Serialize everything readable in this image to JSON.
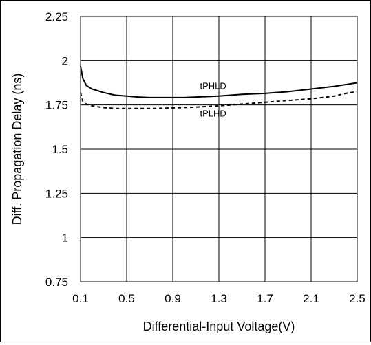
{
  "chart_data": {
    "type": "line",
    "title": "",
    "xlabel": "Differential-Input Voltage(V)",
    "ylabel": "Diff. Propagation Delay (ns)",
    "xlim": [
      0.1,
      2.5
    ],
    "ylim": [
      0.75,
      2.25
    ],
    "xticks": [
      "0.1",
      "0.5",
      "0.9",
      "1.3",
      "1.7",
      "2.1",
      "2.5"
    ],
    "yticks": [
      "0.75",
      "1",
      "1.25",
      "1.5",
      "1.75",
      "2",
      "2.25"
    ],
    "grid": true,
    "series": [
      {
        "name": "tPHLD",
        "style": "solid",
        "color": "#000000",
        "x": [
          0.1,
          0.12,
          0.15,
          0.2,
          0.3,
          0.4,
          0.5,
          0.6,
          0.7,
          0.8,
          0.9,
          1.0,
          1.1,
          1.3,
          1.5,
          1.7,
          1.9,
          2.1,
          2.3,
          2.5
        ],
        "y": [
          1.97,
          1.9,
          1.86,
          1.84,
          1.82,
          1.805,
          1.8,
          1.795,
          1.792,
          1.792,
          1.792,
          1.792,
          1.795,
          1.8,
          1.81,
          1.815,
          1.825,
          1.84,
          1.855,
          1.875
        ]
      },
      {
        "name": "tPLHD",
        "style": "dashed",
        "color": "#000000",
        "x": [
          0.1,
          0.12,
          0.15,
          0.2,
          0.3,
          0.4,
          0.5,
          0.7,
          0.9,
          1.1,
          1.3,
          1.5,
          1.7,
          1.9,
          2.1,
          2.3,
          2.4,
          2.5
        ],
        "y": [
          1.82,
          1.77,
          1.755,
          1.745,
          1.735,
          1.73,
          1.73,
          1.73,
          1.733,
          1.738,
          1.745,
          1.755,
          1.765,
          1.775,
          1.785,
          1.8,
          1.815,
          1.825
        ]
      }
    ],
    "annotations": [
      {
        "text": "tPHLD",
        "x": 1.25,
        "y": 1.84
      },
      {
        "text": "tPLHD",
        "x": 1.25,
        "y": 1.685
      }
    ]
  }
}
